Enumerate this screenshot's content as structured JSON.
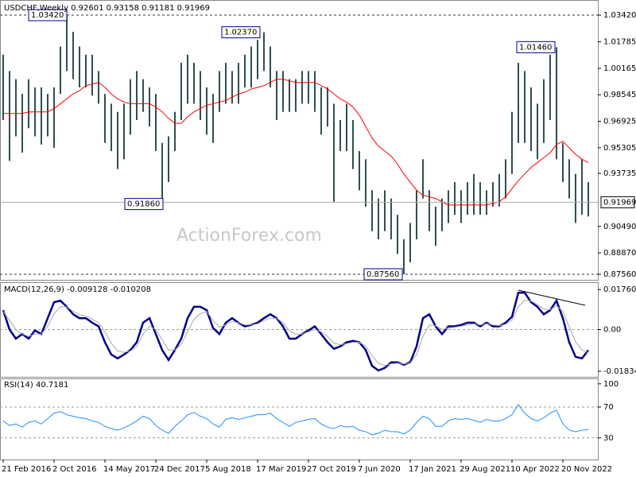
{
  "chart_data": [
    {
      "type": "price",
      "title": "USDCHF,Weekly 0.92601 0.93158 0.91181 0.91969",
      "watermark": "ActionForex.com",
      "categories": [
        "21 Feb 2016",
        null,
        null,
        null,
        null,
        null,
        null,
        null,
        "2 Oct 2016",
        null,
        null,
        null,
        null,
        null,
        null,
        null,
        "14 May 2017",
        null,
        null,
        null,
        null,
        null,
        null,
        null,
        "24 Dec 2017",
        null,
        null,
        null,
        null,
        null,
        null,
        null,
        "5 Aug 2018",
        null,
        null,
        null,
        null,
        null,
        null,
        null,
        "17 Mar 2019",
        null,
        null,
        null,
        null,
        null,
        null,
        null,
        "27 Oct 2019",
        null,
        null,
        null,
        null,
        null,
        null,
        null,
        "7 Jun 2020",
        null,
        null,
        null,
        null,
        null,
        null,
        null,
        "17 Jan 2021",
        null,
        null,
        null,
        null,
        null,
        null,
        null,
        "29 Aug 2021",
        null,
        null,
        null,
        null,
        null,
        null,
        null,
        "10 Apr 2022",
        null,
        null,
        null,
        null,
        null,
        null,
        null,
        "20 Nov 2022",
        null,
        null,
        null,
        null
      ],
      "bar_color": "#2f4f4f",
      "high": [
        1.01,
        1.0,
        0.995,
        0.986,
        0.995,
        0.99,
        0.99,
        0.986,
        0.99,
        1.015,
        1.0342,
        1.024,
        1.015,
        1.01,
        1.01,
        1.0,
        0.986,
        0.98,
        0.975,
        0.98,
        0.995,
        1.0,
        0.995,
        0.99,
        0.986,
        0.956,
        0.96,
        0.975,
        1.005,
        1.01,
        1.005,
        1.0,
        0.99,
        0.986,
        1.0,
        1.005,
        1.0,
        1.005,
        1.01,
        1.015,
        1.019,
        1.0237,
        1.015,
        1.0,
        1.0,
        0.995,
        0.995,
        1.0,
        1.0,
        1.0,
        0.99,
        0.99,
        0.98,
        0.97,
        0.98,
        0.97,
        0.951,
        0.946,
        0.927,
        0.922,
        0.927,
        0.922,
        0.912,
        0.897,
        0.907,
        0.927,
        0.946,
        0.927,
        0.917,
        0.922,
        0.927,
        0.932,
        0.927,
        0.932,
        0.937,
        0.932,
        0.927,
        0.932,
        0.937,
        0.946,
        0.975,
        1.005,
        1.0,
        0.99,
        0.98,
        0.995,
        1.01,
        1.0146,
        0.956,
        0.946,
        0.937,
        0.946,
        0.932
      ],
      "low": [
        0.97,
        0.945,
        0.96,
        0.95,
        0.965,
        0.96,
        0.955,
        0.96,
        0.953,
        0.986,
        1.0,
        0.995,
        0.99,
        0.99,
        0.985,
        0.98,
        0.956,
        0.951,
        0.94,
        0.946,
        0.961,
        0.97,
        0.975,
        0.966,
        0.951,
        0.9186,
        0.932,
        0.951,
        0.97,
        0.98,
        0.98,
        0.97,
        0.961,
        0.956,
        0.975,
        0.98,
        0.98,
        0.98,
        0.99,
        0.99,
        0.995,
        1.0,
        0.99,
        0.97,
        0.975,
        0.975,
        0.975,
        0.98,
        0.98,
        0.975,
        0.961,
        0.966,
        0.92,
        0.951,
        0.951,
        0.94,
        0.927,
        0.917,
        0.902,
        0.897,
        0.902,
        0.897,
        0.888,
        0.8756,
        0.883,
        0.897,
        0.922,
        0.902,
        0.893,
        0.902,
        0.907,
        0.912,
        0.907,
        0.912,
        0.912,
        0.912,
        0.912,
        0.917,
        0.917,
        0.922,
        0.937,
        0.956,
        0.956,
        0.951,
        0.946,
        0.956,
        0.97,
        0.946,
        0.932,
        0.922,
        0.907,
        0.912,
        0.911
      ],
      "ma": {
        "color": "#ff0000",
        "values": [
          0.974,
          0.974,
          0.974,
          0.974,
          0.975,
          0.975,
          0.975,
          0.975,
          0.977,
          0.98,
          0.983,
          0.986,
          0.988,
          0.991,
          0.992,
          0.993,
          0.99,
          0.986,
          0.983,
          0.981,
          0.98,
          0.98,
          0.98,
          0.98,
          0.978,
          0.975,
          0.971,
          0.968,
          0.968,
          0.972,
          0.975,
          0.977,
          0.979,
          0.98,
          0.981,
          0.982,
          0.984,
          0.986,
          0.987,
          0.989,
          0.99,
          0.991,
          0.993,
          0.995,
          0.995,
          0.994,
          0.993,
          0.993,
          0.993,
          0.993,
          0.991,
          0.989,
          0.986,
          0.983,
          0.981,
          0.978,
          0.973,
          0.966,
          0.959,
          0.954,
          0.951,
          0.948,
          0.943,
          0.937,
          0.932,
          0.927,
          0.924,
          0.923,
          0.922,
          0.92,
          0.918,
          0.918,
          0.918,
          0.918,
          0.918,
          0.918,
          0.918,
          0.919,
          0.92,
          0.923,
          0.928,
          0.933,
          0.937,
          0.941,
          0.944,
          0.947,
          0.95,
          0.955,
          0.957,
          0.953,
          0.949,
          0.946,
          0.944
        ]
      },
      "ylim": [
        0.8722,
        1.042
      ],
      "yticks": [
        {
          "value": 1.0342,
          "label": "1.03420"
        },
        1.01785,
        1.00165,
        0.98545,
        0.96925,
        0.95305,
        0.93735,
        {
          "value": 0.9049,
          "label": "0.90490"
        },
        {
          "value": 0.8887,
          "label": "0.88870"
        },
        {
          "value": 0.8756,
          "label": "0.87560"
        }
      ],
      "levels": [
        1.0342,
        0.8756
      ],
      "last_price": 0.91969,
      "annotations": [
        {
          "label": "1.03420",
          "value": 1.0342
        },
        {
          "label": "1.02370",
          "value": 1.0237
        },
        {
          "label": "0.91860",
          "value": 0.9186
        },
        {
          "label": "0.87560",
          "value": 0.8756
        },
        {
          "label": "1.01460",
          "value": 1.0146
        }
      ]
    },
    {
      "type": "line",
      "title": "MACD(12,26,9) -0.009128 -0.010208",
      "series": [
        {
          "color": "#00008b",
          "width": 2.5,
          "values": [
            0.0085,
            0.0,
            -0.004,
            -0.002,
            -0.004,
            -0.0004,
            -0.002,
            0.005,
            0.012,
            0.0127,
            0.01,
            0.0067,
            0.005,
            0.005,
            0.003,
            0.0014,
            -0.0056,
            -0.011,
            -0.0127,
            -0.011,
            -0.009,
            -0.0056,
            0.003,
            0.005,
            -0.002,
            -0.009,
            -0.0134,
            -0.009,
            -0.004,
            0.005,
            0.01,
            0.01,
            0.0085,
            0.0007,
            -0.002,
            0.003,
            0.005,
            0.003,
            0.0014,
            0.002,
            0.003,
            0.005,
            0.0067,
            0.005,
            0.0014,
            -0.004,
            -0.004,
            -0.002,
            -0.0004,
            0.0014,
            -0.002,
            -0.0056,
            -0.0085,
            -0.0074,
            -0.0056,
            -0.005,
            -0.0056,
            -0.009,
            -0.016,
            -0.018,
            -0.0169,
            -0.0144,
            -0.0144,
            -0.0155,
            -0.0144,
            -0.0074,
            0.005,
            0.0067,
            0.0014,
            -0.002,
            0.0014,
            0.0014,
            0.002,
            0.003,
            0.003,
            0.0014,
            0.003,
            0.0014,
            0.0014,
            0.003,
            0.0056,
            0.0162,
            0.0162,
            0.012,
            0.01,
            0.0067,
            0.0085,
            0.0127,
            0.005,
            -0.0056,
            -0.012,
            -0.0127,
            -0.0091
          ]
        },
        {
          "color": "#a9a9a9",
          "width": 1,
          "values": [
            0.008,
            0.004,
            0.0,
            -0.002,
            -0.003,
            -0.002,
            -0.002,
            0.0015,
            0.007,
            0.01,
            0.01,
            0.008,
            0.0065,
            0.006,
            0.0045,
            0.003,
            -0.001,
            -0.006,
            -0.0095,
            -0.01,
            -0.0095,
            -0.0075,
            -0.002,
            0.0015,
            0.0,
            -0.0045,
            -0.009,
            -0.009,
            -0.0065,
            -0.001,
            0.0045,
            0.007,
            0.008,
            0.004,
            0.001,
            0.002,
            0.0035,
            0.003,
            0.002,
            0.002,
            0.0025,
            0.004,
            0.005,
            0.005,
            0.003,
            -0.0005,
            -0.002,
            -0.002,
            -0.001,
            0.0,
            -0.001,
            -0.003,
            -0.006,
            -0.0067,
            -0.0062,
            -0.0056,
            -0.0056,
            -0.0073,
            -0.0115,
            -0.0148,
            -0.0158,
            -0.0151,
            -0.0148,
            -0.0151,
            -0.0148,
            -0.011,
            -0.003,
            0.002,
            0.0017,
            0.0,
            0.0007,
            0.001,
            0.0015,
            0.002,
            0.0025,
            0.002,
            0.0025,
            0.002,
            0.0017,
            0.0023,
            0.004,
            0.01,
            0.013,
            0.0125,
            0.011,
            0.009,
            0.0087,
            0.0105,
            0.008,
            0.0012,
            -0.0055,
            -0.009,
            -0.0102
          ]
        }
      ],
      "ylim": [
        -0.0208,
        0.0201
      ],
      "yticks": [
        0.017603,
        {
          "value": 0,
          "label": "0.00"
        },
        -0.01834
      ],
      "levels": [
        0
      ]
    },
    {
      "type": "line",
      "title": "RSI(14) 40.7181",
      "series": [
        {
          "color": "#1e90ff",
          "width": 1,
          "values": [
            52,
            46,
            48,
            44,
            50,
            52,
            48,
            55,
            62,
            64,
            60,
            58,
            56,
            55,
            52,
            50,
            45,
            42,
            40,
            43,
            47,
            52,
            58,
            55,
            46,
            40,
            36,
            45,
            52,
            60,
            63,
            58,
            55,
            48,
            44,
            54,
            56,
            54,
            56,
            58,
            60,
            60,
            62,
            55,
            50,
            45,
            50,
            52,
            54,
            55,
            48,
            44,
            42,
            46,
            44,
            45,
            40,
            38,
            34,
            36,
            40,
            38,
            38,
            35,
            40,
            50,
            58,
            55,
            45,
            45,
            52,
            55,
            54,
            55,
            53,
            50,
            54,
            52,
            52,
            55,
            60,
            73,
            62,
            55,
            52,
            56,
            62,
            66,
            48,
            40,
            38,
            40,
            40.7
          ]
        }
      ],
      "ylim": [
        2,
        106
      ],
      "yticks": [
        100,
        70,
        30
      ],
      "levels": [
        70,
        30
      ]
    }
  ]
}
